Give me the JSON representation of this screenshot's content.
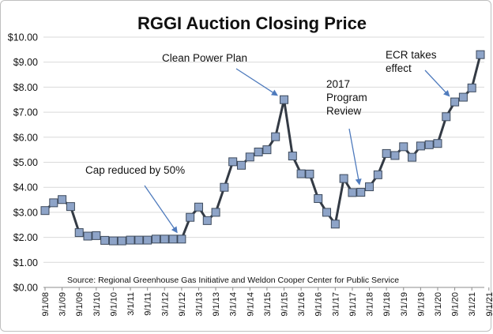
{
  "chart_data": {
    "type": "line",
    "title": "RGGI Auction Closing Price",
    "source": "Source: Regional Greenhouse Gas Initiative and Weldon Cooper Center for Public Service",
    "xlabel": "",
    "ylabel": "",
    "ylim": [
      0,
      10
    ],
    "y_ticks": [
      "$0.00",
      "$1.00",
      "$2.00",
      "$3.00",
      "$4.00",
      "$5.00",
      "$6.00",
      "$7.00",
      "$8.00",
      "$9.00",
      "$10.00"
    ],
    "x_tick_labels": [
      "9/1/08",
      "3/1/09",
      "9/1/09",
      "3/1/10",
      "9/1/10",
      "3/1/11",
      "9/1/11",
      "3/1/12",
      "9/1/12",
      "3/1/13",
      "9/1/13",
      "3/1/14",
      "9/1/14",
      "3/1/15",
      "9/1/15",
      "3/1/16",
      "9/1/16",
      "3/1/17",
      "9/1/17",
      "3/1/18",
      "9/1/18",
      "3/1/19",
      "9/1/19",
      "3/1/20",
      "9/1/20",
      "3/1/21",
      "9/1/21"
    ],
    "grid": true,
    "legend": "none",
    "colors": {
      "line": "#333a44",
      "marker": "#8ea4c8",
      "marker_edge": "#3d4a5c",
      "arrow": "#4f7bbd",
      "grid": "#d9d9d9"
    },
    "series": [
      {
        "values": [
          3.07,
          3.38,
          3.51,
          3.23,
          2.19,
          2.05,
          2.07,
          1.88,
          1.86,
          1.86,
          1.89,
          1.89,
          1.89,
          1.93,
          1.93,
          1.93,
          1.93,
          2.8,
          3.21,
          2.67,
          3.0,
          4.0,
          5.02,
          4.88,
          5.21,
          5.41,
          5.5,
          6.02,
          7.5,
          5.25,
          4.54,
          4.53,
          3.55,
          3.0,
          2.53,
          4.35,
          3.79,
          3.8,
          4.02,
          4.5,
          5.35,
          5.27,
          5.62,
          5.2,
          5.65,
          5.7,
          5.75,
          6.82,
          7.41,
          7.6,
          7.97,
          9.3
        ]
      }
    ],
    "annotations": [
      {
        "lines": [
          "Cap reduced by 50%"
        ],
        "target_index": 16
      },
      {
        "lines": [
          "Clean Power Plan"
        ],
        "target_index": 28
      },
      {
        "lines": [
          "2017",
          "Program",
          "Review"
        ],
        "target_index": 37
      },
      {
        "lines": [
          "ECR  takes",
          "effect"
        ],
        "target_index": 48
      }
    ]
  }
}
